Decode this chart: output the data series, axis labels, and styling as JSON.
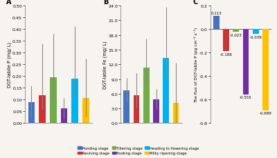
{
  "panel_A": {
    "title": "A",
    "ylabel": "DGT-labile P (mg/ L)",
    "ylim": [
      0.0,
      0.5
    ],
    "ytick_vals": [
      0.0,
      0.05,
      0.1,
      0.15,
      0.2,
      0.25,
      0.3,
      0.35,
      0.4,
      0.45,
      0.5
    ],
    "ytick_labels": [
      "0.00",
      "0.05",
      "0.10",
      "0.15",
      "0.20",
      "0.25",
      "0.30",
      "0.35",
      "0.40",
      "0.45",
      "0.50"
    ],
    "bars": [
      0.09,
      0.12,
      0.195,
      0.063,
      0.188,
      0.108
    ],
    "errors_up": [
      0.07,
      0.22,
      0.185,
      0.045,
      0.225,
      0.165
    ],
    "errors_down": [
      0.07,
      0.06,
      0.1,
      0.045,
      0.07,
      0.08
    ]
  },
  "panel_B": {
    "title": "B",
    "ylabel": "DGT-labile Fe (mg/ L)",
    "ylim": [
      0.0,
      24.0
    ],
    "ytick_vals": [
      0.0,
      3.0,
      6.0,
      9.0,
      12.0,
      15.0,
      18.0,
      21.0,
      24.0
    ],
    "ytick_labels": [
      "0.0",
      "3.0",
      "6.0",
      "9.0",
      "12.0",
      "15.0",
      "18.0",
      "21.0",
      "24.0"
    ],
    "bars": [
      6.7,
      5.7,
      11.3,
      4.9,
      13.3,
      4.1
    ],
    "errors_up": [
      2.5,
      4.5,
      6.0,
      2.0,
      10.5,
      8.2
    ],
    "errors_down": [
      2.5,
      2.5,
      3.5,
      2.0,
      4.0,
      4.1
    ]
  },
  "panel_C": {
    "title": "C",
    "ylabel": "The flux of DGT-labile P (pg cm⁻² s⁻¹)",
    "ylim": [
      -0.8,
      0.2
    ],
    "ytick_vals": [
      -0.8,
      -0.6,
      -0.4,
      -0.2,
      0.0,
      0.2
    ],
    "ytick_labels": [
      "-0.8",
      "-0.6",
      "-0.4",
      "-0.2",
      "0.0",
      "0.2"
    ],
    "bars": [
      0.113,
      -0.188,
      -0.023,
      -0.555,
      -0.039,
      -0.689
    ],
    "annotations": [
      "0.113",
      "-0.188",
      "-0.023",
      "-0.555",
      "-0.039",
      "-0.689"
    ],
    "annot_x_offsets": [
      0,
      0,
      0,
      0,
      0,
      0
    ]
  },
  "colors": [
    "#4472C4",
    "#CC3333",
    "#70AD47",
    "#7030A0",
    "#00B0F0",
    "#FFC000"
  ],
  "legend_labels": [
    "Ponding stage",
    "Reviving stage",
    "Tillering stage",
    "Booting stage",
    "Heading to flowering stage",
    "Milky ripening stage"
  ],
  "bg_color": "#f7f4f0",
  "axes_bg": "#f7f4f0"
}
